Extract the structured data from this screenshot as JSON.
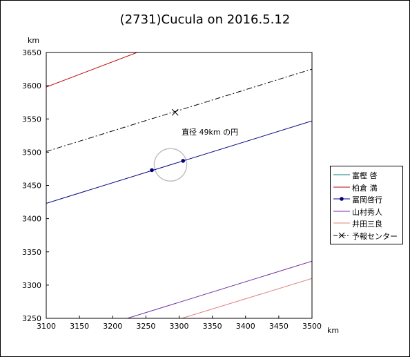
{
  "chart_data": {
    "type": "line",
    "title": "(2731)Cucula on 2016.5.12",
    "xlabel": "km",
    "ylabel": "km",
    "xlim": [
      3100,
      3500
    ],
    "ylim": [
      3250,
      3650
    ],
    "xticks": [
      "3100",
      "3150",
      "3200",
      "3250",
      "3300",
      "3350",
      "3400",
      "3450",
      "3500"
    ],
    "yticks": [
      "3650",
      "3600",
      "3550",
      "3500",
      "3450",
      "3400",
      "3350",
      "3300",
      "3250"
    ],
    "grid": false,
    "legend_position": "right",
    "annotation": "直径 49km の円",
    "circle": {
      "center_x": 3287,
      "center_y": 3481,
      "diameter": 49,
      "color": "#c0c0c0"
    },
    "series": [
      {
        "name": "富樫 啓",
        "color": "#008080",
        "style": "solid",
        "points": []
      },
      {
        "name": "柏倉 満",
        "color": "#c00000",
        "style": "solid",
        "points": [
          [
            3100,
            3598
          ],
          [
            3263,
            3660
          ]
        ]
      },
      {
        "name": "冨岡啓行",
        "color": "#000080",
        "style": "solid",
        "marker": "dot",
        "points": [
          [
            3100,
            3423
          ],
          [
            3500,
            3547
          ]
        ],
        "marker_points": [
          [
            3259,
            3473
          ],
          [
            3306,
            3487
          ]
        ]
      },
      {
        "name": "山村秀人",
        "color": "#7030a0",
        "style": "solid",
        "points": [
          [
            3222,
            3250
          ],
          [
            3500,
            3336
          ]
        ]
      },
      {
        "name": "井田三良",
        "color": "#e08080",
        "style": "solid",
        "points": [
          [
            3304,
            3250
          ],
          [
            3500,
            3310
          ]
        ]
      },
      {
        "name": "予報センター",
        "color": "#000000",
        "style": "dashdot",
        "marker": "x",
        "points": [
          [
            3100,
            3501
          ],
          [
            3500,
            3625
          ]
        ],
        "marker_points": [
          [
            3294,
            3560
          ]
        ]
      }
    ]
  }
}
